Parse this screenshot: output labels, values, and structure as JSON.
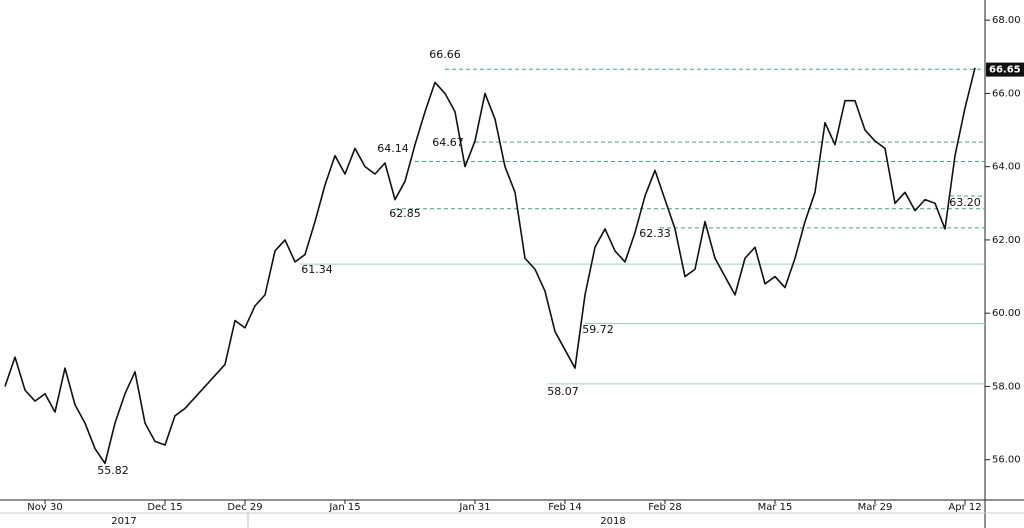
{
  "chart_data": {
    "type": "line",
    "categories": [
      null,
      null,
      null,
      null,
      "Nov 30",
      null,
      null,
      null,
      null,
      null,
      null,
      null,
      null,
      null,
      null,
      null,
      "Dec 15",
      null,
      null,
      null,
      null,
      null,
      null,
      null,
      "Dec 29",
      null,
      null,
      null,
      null,
      null,
      null,
      null,
      null,
      null,
      "Jan 15",
      null,
      null,
      null,
      null,
      null,
      null,
      null,
      null,
      null,
      null,
      null,
      null,
      "Jan 31",
      null,
      null,
      null,
      null,
      null,
      null,
      null,
      null,
      "Feb 14",
      null,
      null,
      null,
      null,
      null,
      null,
      null,
      null,
      null,
      "Feb 28",
      null,
      null,
      null,
      null,
      null,
      null,
      null,
      null,
      null,
      null,
      "Mar 15",
      null,
      null,
      null,
      null,
      null,
      null,
      null,
      null,
      null,
      "Mar 29",
      null,
      null,
      null,
      null,
      null,
      null,
      null,
      null,
      "Apr 12",
      null
    ],
    "years": [
      "2017",
      "2018"
    ],
    "series": [
      {
        "color": "#111111",
        "values": [
          58.0,
          58.8,
          57.9,
          57.6,
          57.8,
          57.3,
          58.5,
          57.5,
          57.0,
          56.3,
          55.9,
          57.0,
          57.8,
          58.4,
          57.0,
          56.5,
          56.4,
          57.2,
          57.4,
          57.7,
          58.0,
          58.3,
          58.6,
          59.8,
          59.6,
          60.2,
          60.5,
          61.7,
          62.0,
          61.4,
          61.6,
          62.5,
          63.5,
          64.3,
          63.8,
          64.5,
          64.0,
          63.8,
          64.1,
          63.1,
          63.6,
          64.6,
          65.5,
          66.3,
          66.0,
          65.5,
          64.0,
          64.7,
          66.0,
          65.3,
          64.0,
          63.3,
          61.5,
          61.2,
          60.6,
          59.5,
          59.0,
          58.5,
          60.5,
          61.8,
          62.3,
          61.7,
          61.4,
          62.2,
          63.2,
          63.9,
          63.1,
          62.3,
          61.0,
          61.2,
          62.5,
          61.5,
          61.0,
          60.5,
          61.5,
          61.8,
          60.8,
          61.0,
          60.7,
          61.5,
          62.5,
          63.3,
          65.2,
          64.6,
          65.8,
          65.8,
          65.0,
          64.7,
          64.5,
          63.0,
          63.3,
          62.8,
          63.1,
          63.0,
          62.3,
          64.3,
          65.6,
          66.7
        ]
      }
    ],
    "ylim": [
      54.9,
      68.55
    ],
    "yticks": [
      {
        "value": 56,
        "label": "56.00"
      },
      {
        "value": 58,
        "label": "58.00"
      },
      {
        "value": 60,
        "label": "60.00"
      },
      {
        "value": 62,
        "label": "62.00"
      },
      {
        "value": 64,
        "label": "64.00"
      },
      {
        "value": 66,
        "label": "66.00"
      },
      {
        "value": 68,
        "label": "68.00"
      }
    ],
    "last_price": {
      "value": 66.65,
      "label": "66.65"
    },
    "levels": [
      {
        "value": 66.66,
        "label": "66.66",
        "style": "dashed"
      },
      {
        "value": 64.67,
        "label": "64.67",
        "style": "dashed"
      },
      {
        "value": 64.14,
        "label": "64.14",
        "style": "dashed"
      },
      {
        "value": 62.85,
        "label": "62.85",
        "style": "dashed"
      },
      {
        "value": 62.33,
        "label": "62.33",
        "style": "dashed"
      },
      {
        "value": 63.2,
        "label": "63.20",
        "style": "dashed"
      },
      {
        "value": 61.34,
        "label": "61.34",
        "style": "solid"
      },
      {
        "value": 59.72,
        "label": "59.72",
        "style": "solid"
      },
      {
        "value": 58.07,
        "label": "58.07",
        "style": "solid"
      },
      {
        "value": 55.82,
        "label": "55.82",
        "style": "none"
      }
    ]
  }
}
